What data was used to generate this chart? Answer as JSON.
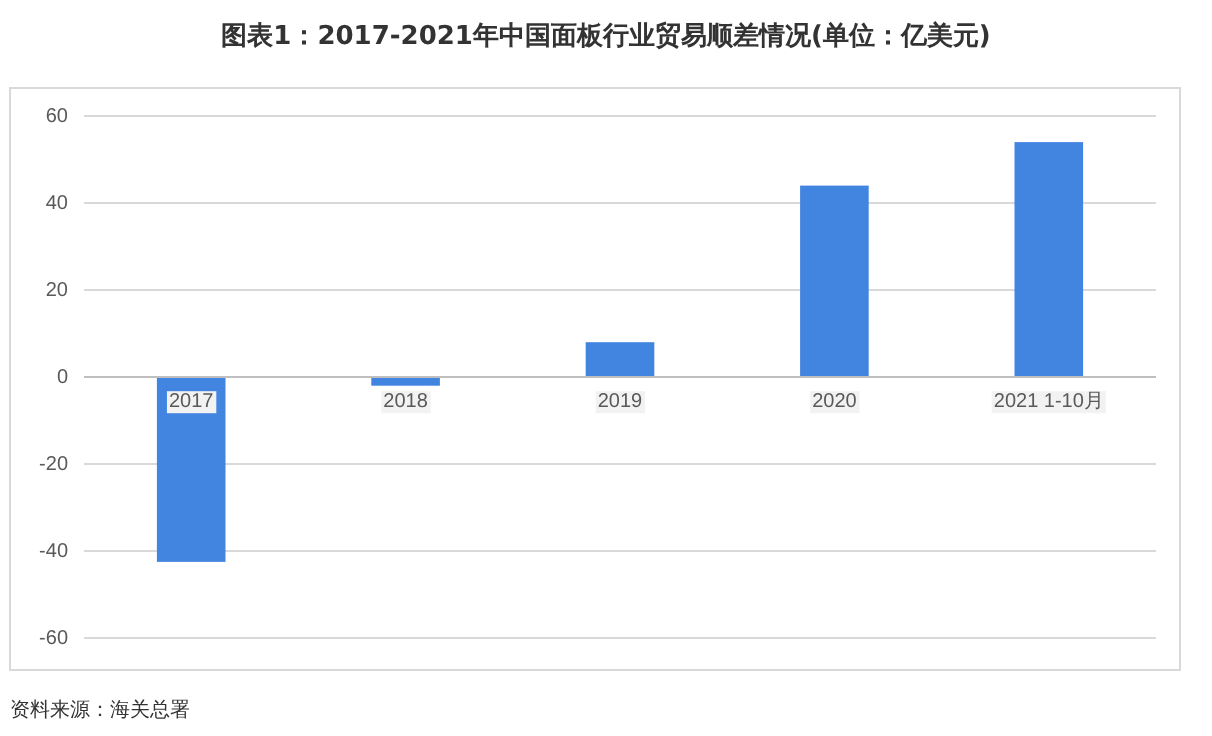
{
  "chart_data": {
    "type": "bar",
    "title": "图表1：2017-2021年中国面板行业贸易顺差情况(单位：亿美元)",
    "categories": [
      "2017",
      "2018",
      "2019",
      "2020",
      "2021 1-10月"
    ],
    "values": [
      -42.5,
      -2,
      8,
      44,
      54
    ],
    "color": "#4285e1",
    "ylim": [
      -60,
      60
    ],
    "yticks": [
      -60,
      -40,
      -20,
      0,
      20,
      40,
      60
    ],
    "grid": "y",
    "annotations": [
      "资料来源：海关总署"
    ]
  }
}
